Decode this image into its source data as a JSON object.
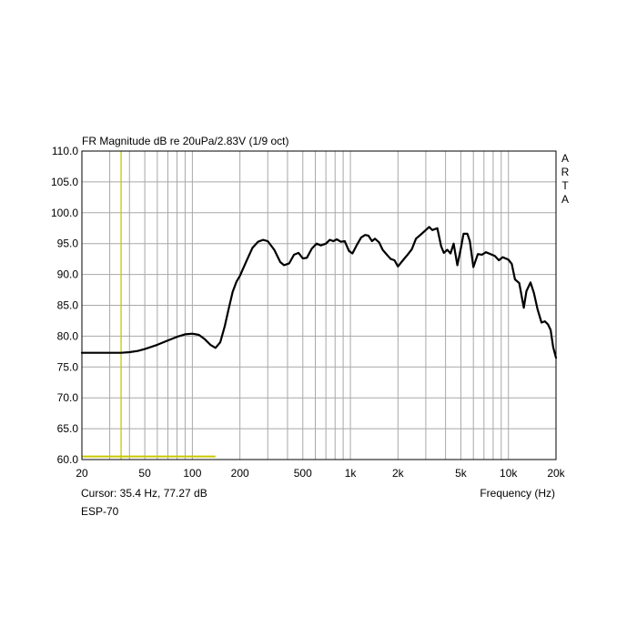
{
  "chart_data": {
    "type": "line",
    "title": "FR Magnitude dB re 20uPa/2.83V (1/9 oct)",
    "xlabel": "Frequency (Hz)",
    "ylabel": "",
    "x_scale": "log",
    "xlim": [
      20,
      20000
    ],
    "ylim": [
      60,
      110
    ],
    "grid": true,
    "x_tick_labels": [
      {
        "value": 20,
        "label": "20"
      },
      {
        "value": 50,
        "label": "50"
      },
      {
        "value": 100,
        "label": "100"
      },
      {
        "value": 200,
        "label": "200"
      },
      {
        "value": 500,
        "label": "500"
      },
      {
        "value": 1000,
        "label": "1k"
      },
      {
        "value": 2000,
        "label": "2k"
      },
      {
        "value": 5000,
        "label": "5k"
      },
      {
        "value": 10000,
        "label": "10k"
      },
      {
        "value": 20000,
        "label": "20k"
      }
    ],
    "y_ticks": [
      60,
      65,
      70,
      75,
      80,
      85,
      90,
      95,
      100,
      105,
      110
    ],
    "y_tick_labels": [
      "60.0",
      "65.0",
      "70.0",
      "75.0",
      "80.0",
      "85.0",
      "90.0",
      "95.0",
      "100.0",
      "105.0",
      "110.0"
    ],
    "side_label": [
      "A",
      "R",
      "T",
      "A"
    ],
    "cursor": {
      "x": 35.4,
      "y": 77.27,
      "text": "Cursor: 35.4 Hz, 77.27 dB",
      "color": "#c8c800"
    },
    "marker_line": {
      "x_start": 20,
      "x_end": 140,
      "y": 60.5,
      "color": "#c8c800"
    },
    "device_label": "ESP-70",
    "series": [
      {
        "color": "#000000",
        "points": [
          [
            20,
            77.3
          ],
          [
            25,
            77.3
          ],
          [
            30,
            77.3
          ],
          [
            35.4,
            77.3
          ],
          [
            40,
            77.4
          ],
          [
            45,
            77.6
          ],
          [
            50,
            77.9
          ],
          [
            60,
            78.6
          ],
          [
            70,
            79.3
          ],
          [
            80,
            79.9
          ],
          [
            90,
            80.3
          ],
          [
            100,
            80.4
          ],
          [
            110,
            80.2
          ],
          [
            120,
            79.5
          ],
          [
            130,
            78.6
          ],
          [
            140,
            78.1
          ],
          [
            150,
            79.0
          ],
          [
            160,
            81.5
          ],
          [
            170,
            84.5
          ],
          [
            180,
            87.2
          ],
          [
            190,
            88.8
          ],
          [
            200,
            89.8
          ],
          [
            220,
            92.2
          ],
          [
            240,
            94.3
          ],
          [
            260,
            95.3
          ],
          [
            280,
            95.6
          ],
          [
            300,
            95.4
          ],
          [
            330,
            94.0
          ],
          [
            360,
            92.0
          ],
          [
            380,
            91.5
          ],
          [
            410,
            91.8
          ],
          [
            440,
            93.2
          ],
          [
            470,
            93.5
          ],
          [
            500,
            92.6
          ],
          [
            530,
            92.7
          ],
          [
            570,
            94.2
          ],
          [
            610,
            95.0
          ],
          [
            650,
            94.7
          ],
          [
            700,
            95.0
          ],
          [
            740,
            95.6
          ],
          [
            780,
            95.4
          ],
          [
            820,
            95.7
          ],
          [
            870,
            95.3
          ],
          [
            920,
            95.4
          ],
          [
            980,
            93.8
          ],
          [
            1030,
            93.4
          ],
          [
            1100,
            94.8
          ],
          [
            1170,
            96.0
          ],
          [
            1240,
            96.4
          ],
          [
            1300,
            96.3
          ],
          [
            1370,
            95.4
          ],
          [
            1430,
            95.8
          ],
          [
            1520,
            95.2
          ],
          [
            1600,
            94.0
          ],
          [
            1700,
            93.2
          ],
          [
            1800,
            92.5
          ],
          [
            1900,
            92.3
          ],
          [
            2000,
            91.3
          ],
          [
            2150,
            92.3
          ],
          [
            2300,
            93.2
          ],
          [
            2450,
            94.1
          ],
          [
            2600,
            95.8
          ],
          [
            2800,
            96.5
          ],
          [
            3000,
            97.2
          ],
          [
            3150,
            97.7
          ],
          [
            3300,
            97.2
          ],
          [
            3550,
            97.5
          ],
          [
            3750,
            94.6
          ],
          [
            3900,
            93.5
          ],
          [
            4100,
            94.0
          ],
          [
            4300,
            93.4
          ],
          [
            4500,
            95.0
          ],
          [
            4750,
            91.5
          ],
          [
            5000,
            94.2
          ],
          [
            5200,
            96.6
          ],
          [
            5500,
            96.6
          ],
          [
            5700,
            95.4
          ],
          [
            6000,
            91.2
          ],
          [
            6400,
            93.3
          ],
          [
            6800,
            93.2
          ],
          [
            7200,
            93.6
          ],
          [
            7700,
            93.3
          ],
          [
            8200,
            93.0
          ],
          [
            8700,
            92.3
          ],
          [
            9200,
            92.8
          ],
          [
            9600,
            92.6
          ],
          [
            10000,
            92.4
          ],
          [
            10500,
            91.7
          ],
          [
            11000,
            89.2
          ],
          [
            11700,
            88.6
          ],
          [
            12500,
            84.6
          ],
          [
            13000,
            87.3
          ],
          [
            13800,
            88.7
          ],
          [
            14500,
            87.0
          ],
          [
            15300,
            84.3
          ],
          [
            16200,
            82.2
          ],
          [
            17000,
            82.4
          ],
          [
            17800,
            81.9
          ],
          [
            18500,
            81.0
          ],
          [
            19200,
            78.2
          ],
          [
            20000,
            76.5
          ]
        ]
      }
    ]
  }
}
